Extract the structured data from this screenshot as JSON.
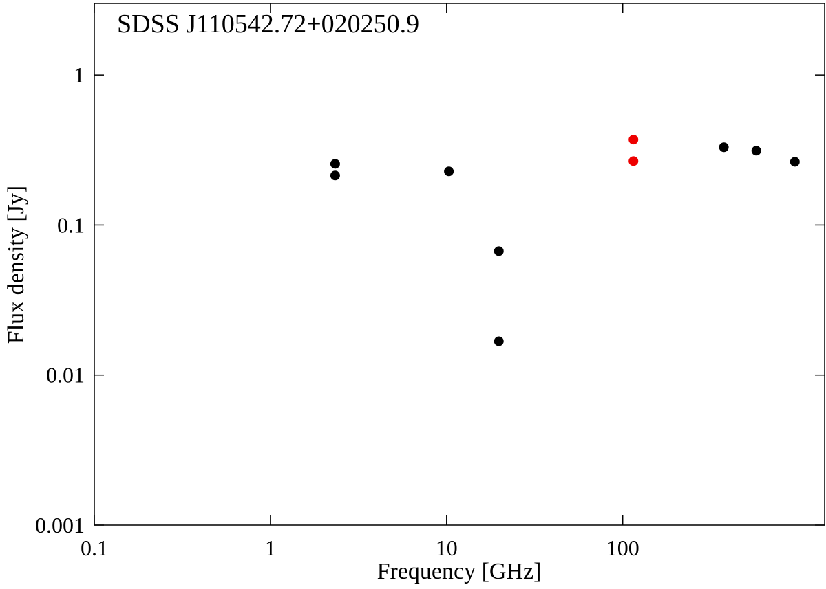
{
  "chart_data": {
    "type": "scatter",
    "title": "SDSS J110542.72+020250.9",
    "x_label": "Frequency [GHz]",
    "y_label": "Flux density [Jy]",
    "log_x": true,
    "log_y": true,
    "xlim": [
      0.1,
      1400
    ],
    "ylim": [
      0.001,
      3.0
    ],
    "xticks": [
      0.1,
      1,
      10,
      100
    ],
    "yticks": [
      0.001,
      0.01,
      0.1,
      1
    ],
    "series": [
      {
        "color": "#000000",
        "x": [
          2.33,
          2.33,
          10.3,
          19.8,
          19.8,
          375,
          573,
          949
        ],
        "values": [
          0.256,
          0.214,
          0.228,
          0.067,
          0.0168,
          0.33,
          0.313,
          0.264
        ]
      },
      {
        "color": "#ee0000",
        "x": [
          115,
          115
        ],
        "values": [
          0.371,
          0.267
        ]
      }
    ]
  }
}
